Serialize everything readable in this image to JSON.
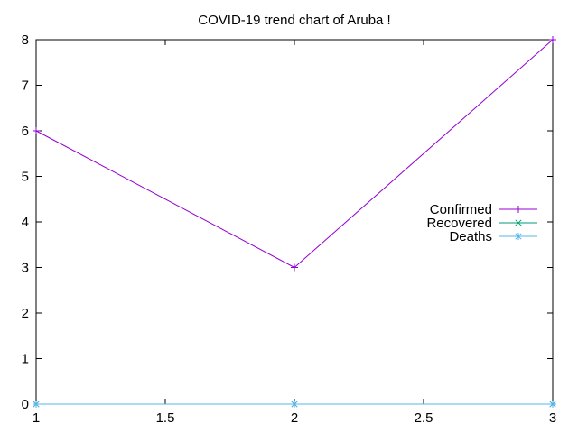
{
  "chart_data": {
    "type": "line",
    "title": "COVID-19 trend chart of Aruba !",
    "xlabel": "",
    "ylabel": "",
    "x": [
      1,
      2,
      3
    ],
    "xlim": [
      1,
      3
    ],
    "ylim": [
      0,
      8
    ],
    "xticks": [
      1,
      1.5,
      2,
      2.5,
      3
    ],
    "xtick_labels": [
      "1",
      "1.5",
      "2",
      "2.5",
      "3"
    ],
    "yticks": [
      0,
      1,
      2,
      3,
      4,
      5,
      6,
      7,
      8
    ],
    "ytick_labels": [
      "0",
      "1",
      "2",
      "3",
      "4",
      "5",
      "6",
      "7",
      "8"
    ],
    "grid": false,
    "legend_position": "right",
    "series": [
      {
        "name": "Confirmed",
        "values": [
          6,
          3,
          8
        ],
        "color": "#9400d3",
        "marker": "plus"
      },
      {
        "name": "Recovered",
        "values": [
          0,
          0,
          0
        ],
        "color": "#009e73",
        "marker": "cross"
      },
      {
        "name": "Deaths",
        "values": [
          0,
          0,
          0
        ],
        "color": "#56b4e9",
        "marker": "star"
      }
    ]
  }
}
